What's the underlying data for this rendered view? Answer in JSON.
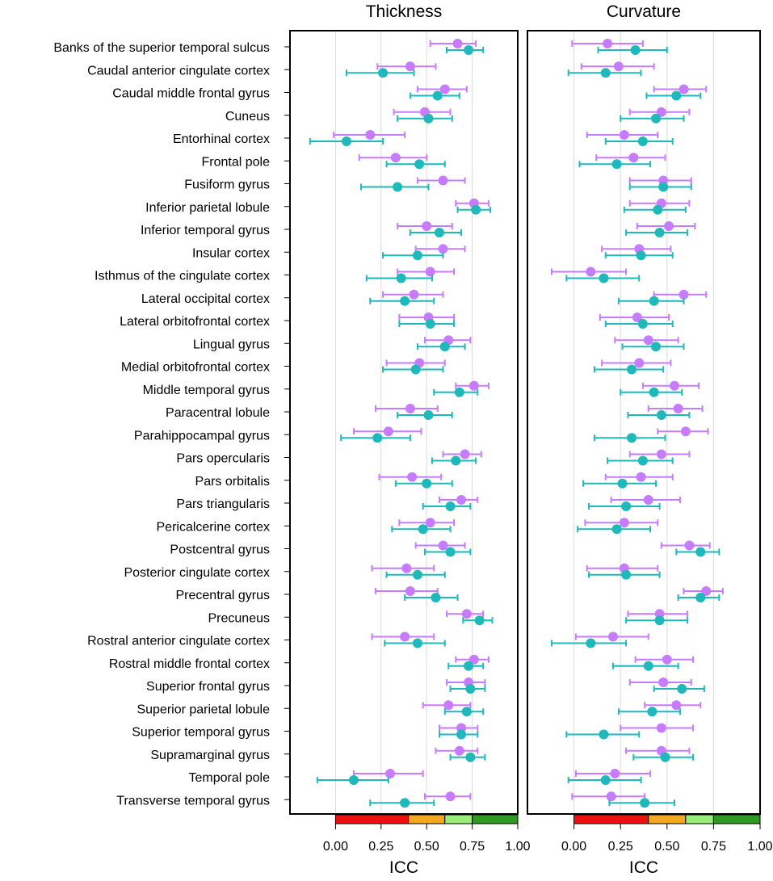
{
  "chart_data": {
    "type": "dot-errorbar",
    "xlabel": "ICC",
    "xlim": [
      -0.25,
      1.0
    ],
    "x_ticks": [
      0.0,
      0.25,
      0.5,
      0.75,
      1.0
    ],
    "x_tick_labels": [
      "0.00",
      "0.25",
      "0.50",
      "0.75",
      "1.00"
    ],
    "grid": "vertical",
    "colors": {
      "series_a": "#c77cff",
      "series_b": "#1fb8bb",
      "band_poor": "#ee0f0f",
      "band_moderate": "#f5a623",
      "band_good": "#99ee77",
      "band_excellent": "#2f9a21"
    },
    "reliability_bands": [
      {
        "from": 0.0,
        "to": 0.4,
        "color": "#ee0f0f"
      },
      {
        "from": 0.4,
        "to": 0.6,
        "color": "#f5a623"
      },
      {
        "from": 0.6,
        "to": 0.75,
        "color": "#99ee77"
      },
      {
        "from": 0.75,
        "to": 1.0,
        "color": "#2f9a21"
      }
    ],
    "regions": [
      "Banks of the superior temporal sulcus",
      "Caudal anterior cingulate cortex",
      "Caudal middle frontal gyrus",
      "Cuneus",
      "Entorhinal cortex",
      "Frontal pole",
      "Fusiform gyrus",
      "Inferior parietal lobule",
      "Inferior temporal gyrus",
      "Insular cortex",
      "Isthmus of the cingulate cortex",
      "Lateral occipital cortex",
      "Lateral orbitofrontal cortex",
      "Lingual gyrus",
      "Medial orbitofrontal cortex",
      "Middle temporal gyrus",
      "Paracentral lobule",
      "Parahippocampal gyrus",
      "Pars opercularis",
      "Pars orbitalis",
      "Pars triangularis",
      "Pericalcerine cortex",
      "Postcentral gyrus",
      "Posterior cingulate cortex",
      "Precentral gyrus",
      "Precuneus",
      "Rostral anterior cingulate cortex",
      "Rostral middle frontal cortex",
      "Superior frontal gyrus",
      "Superior parietal lobule",
      "Superior temporal gyrus",
      "Supramarginal gyrus",
      "Temporal pole",
      "Transverse temporal gyrus"
    ],
    "panels": [
      {
        "title": "Thickness",
        "series": [
          {
            "name": "purple",
            "points": [
              [
                0.67,
                0.52,
                0.77
              ],
              [
                0.41,
                0.23,
                0.55
              ],
              [
                0.6,
                0.45,
                0.72
              ],
              [
                0.49,
                0.32,
                0.63
              ],
              [
                0.19,
                -0.01,
                0.38
              ],
              [
                0.33,
                0.13,
                0.5
              ],
              [
                0.59,
                0.45,
                0.71
              ],
              [
                0.76,
                0.66,
                0.84
              ],
              [
                0.5,
                0.34,
                0.64
              ],
              [
                0.59,
                0.44,
                0.71
              ],
              [
                0.52,
                0.34,
                0.65
              ],
              [
                0.43,
                0.26,
                0.59
              ],
              [
                0.51,
                0.35,
                0.65
              ],
              [
                0.62,
                0.49,
                0.74
              ],
              [
                0.46,
                0.28,
                0.6
              ],
              [
                0.76,
                0.66,
                0.84
              ],
              [
                0.41,
                0.22,
                0.56
              ],
              [
                0.29,
                0.1,
                0.47
              ],
              [
                0.71,
                0.59,
                0.8
              ],
              [
                0.42,
                0.24,
                0.58
              ],
              [
                0.69,
                0.57,
                0.78
              ],
              [
                0.52,
                0.35,
                0.65
              ],
              [
                0.59,
                0.44,
                0.71
              ],
              [
                0.39,
                0.2,
                0.54
              ],
              [
                0.41,
                0.22,
                0.56
              ],
              [
                0.72,
                0.61,
                0.81
              ],
              [
                0.38,
                0.2,
                0.54
              ],
              [
                0.76,
                0.66,
                0.84
              ],
              [
                0.73,
                0.61,
                0.82
              ],
              [
                0.62,
                0.48,
                0.74
              ],
              [
                0.69,
                0.57,
                0.78
              ],
              [
                0.68,
                0.55,
                0.78
              ],
              [
                0.3,
                0.1,
                0.48
              ],
              [
                0.63,
                0.49,
                0.74
              ]
            ]
          },
          {
            "name": "teal",
            "points": [
              [
                0.73,
                0.61,
                0.81
              ],
              [
                0.26,
                0.06,
                0.43
              ],
              [
                0.56,
                0.41,
                0.68
              ],
              [
                0.51,
                0.34,
                0.64
              ],
              [
                0.06,
                -0.14,
                0.26
              ],
              [
                0.46,
                0.28,
                0.6
              ],
              [
                0.34,
                0.14,
                0.51
              ],
              [
                0.77,
                0.67,
                0.85
              ],
              [
                0.57,
                0.41,
                0.69
              ],
              [
                0.45,
                0.26,
                0.59
              ],
              [
                0.36,
                0.17,
                0.53
              ],
              [
                0.38,
                0.19,
                0.54
              ],
              [
                0.52,
                0.35,
                0.65
              ],
              [
                0.6,
                0.45,
                0.71
              ],
              [
                0.44,
                0.26,
                0.59
              ],
              [
                0.68,
                0.54,
                0.78
              ],
              [
                0.51,
                0.34,
                0.64
              ],
              [
                0.23,
                0.03,
                0.41
              ],
              [
                0.66,
                0.53,
                0.77
              ],
              [
                0.5,
                0.33,
                0.64
              ],
              [
                0.63,
                0.48,
                0.74
              ],
              [
                0.48,
                0.31,
                0.63
              ],
              [
                0.63,
                0.49,
                0.74
              ],
              [
                0.45,
                0.28,
                0.6
              ],
              [
                0.55,
                0.38,
                0.67
              ],
              [
                0.79,
                0.7,
                0.86
              ],
              [
                0.45,
                0.27,
                0.6
              ],
              [
                0.73,
                0.62,
                0.81
              ],
              [
                0.74,
                0.63,
                0.82
              ],
              [
                0.72,
                0.6,
                0.81
              ],
              [
                0.69,
                0.57,
                0.78
              ],
              [
                0.74,
                0.63,
                0.82
              ],
              [
                0.1,
                -0.1,
                0.29
              ],
              [
                0.38,
                0.19,
                0.54
              ]
            ]
          }
        ]
      },
      {
        "title": "Curvature",
        "series": [
          {
            "name": "purple",
            "points": [
              [
                0.18,
                -0.01,
                0.37
              ],
              [
                0.24,
                0.04,
                0.43
              ],
              [
                0.59,
                0.43,
                0.71
              ],
              [
                0.47,
                0.3,
                0.62
              ],
              [
                0.27,
                0.07,
                0.45
              ],
              [
                0.32,
                0.12,
                0.49
              ],
              [
                0.48,
                0.3,
                0.63
              ],
              [
                0.47,
                0.3,
                0.62
              ],
              [
                0.51,
                0.34,
                0.65
              ],
              [
                0.35,
                0.15,
                0.52
              ],
              [
                0.09,
                -0.12,
                0.28
              ],
              [
                0.59,
                0.43,
                0.71
              ],
              [
                0.34,
                0.14,
                0.51
              ],
              [
                0.4,
                0.22,
                0.56
              ],
              [
                0.35,
                0.15,
                0.52
              ],
              [
                0.54,
                0.37,
                0.67
              ],
              [
                0.56,
                0.4,
                0.69
              ],
              [
                0.6,
                0.45,
                0.72
              ],
              [
                0.47,
                0.3,
                0.62
              ],
              [
                0.36,
                0.17,
                0.53
              ],
              [
                0.4,
                0.2,
                0.57
              ],
              [
                0.27,
                0.06,
                0.45
              ],
              [
                0.62,
                0.47,
                0.73
              ],
              [
                0.27,
                0.07,
                0.45
              ],
              [
                0.71,
                0.59,
                0.8
              ],
              [
                0.46,
                0.29,
                0.61
              ],
              [
                0.21,
                0.01,
                0.4
              ],
              [
                0.5,
                0.33,
                0.64
              ],
              [
                0.48,
                0.3,
                0.63
              ],
              [
                0.55,
                0.38,
                0.68
              ],
              [
                0.47,
                0.25,
                0.64
              ],
              [
                0.47,
                0.28,
                0.62
              ],
              [
                0.22,
                0.01,
                0.41
              ],
              [
                0.2,
                -0.01,
                0.38
              ]
            ]
          },
          {
            "name": "teal",
            "points": [
              [
                0.33,
                0.13,
                0.5
              ],
              [
                0.17,
                -0.03,
                0.36
              ],
              [
                0.55,
                0.39,
                0.68
              ],
              [
                0.44,
                0.25,
                0.59
              ],
              [
                0.37,
                0.17,
                0.53
              ],
              [
                0.23,
                0.03,
                0.41
              ],
              [
                0.48,
                0.3,
                0.63
              ],
              [
                0.45,
                0.27,
                0.6
              ],
              [
                0.46,
                0.28,
                0.61
              ],
              [
                0.36,
                0.17,
                0.53
              ],
              [
                0.16,
                -0.04,
                0.35
              ],
              [
                0.43,
                0.24,
                0.59
              ],
              [
                0.37,
                0.17,
                0.53
              ],
              [
                0.44,
                0.26,
                0.59
              ],
              [
                0.31,
                0.11,
                0.48
              ],
              [
                0.43,
                0.25,
                0.58
              ],
              [
                0.47,
                0.29,
                0.62
              ],
              [
                0.31,
                0.11,
                0.49
              ],
              [
                0.37,
                0.18,
                0.53
              ],
              [
                0.26,
                0.05,
                0.44
              ],
              [
                0.28,
                0.08,
                0.46
              ],
              [
                0.23,
                0.02,
                0.41
              ],
              [
                0.68,
                0.55,
                0.78
              ],
              [
                0.28,
                0.08,
                0.46
              ],
              [
                0.68,
                0.56,
                0.78
              ],
              [
                0.46,
                0.28,
                0.61
              ],
              [
                0.09,
                -0.12,
                0.28
              ],
              [
                0.4,
                0.21,
                0.56
              ],
              [
                0.58,
                0.43,
                0.7
              ],
              [
                0.42,
                0.24,
                0.57
              ],
              [
                0.16,
                -0.04,
                0.35
              ],
              [
                0.49,
                0.32,
                0.64
              ],
              [
                0.17,
                -0.03,
                0.36
              ],
              [
                0.38,
                0.19,
                0.54
              ]
            ]
          }
        ]
      }
    ]
  }
}
